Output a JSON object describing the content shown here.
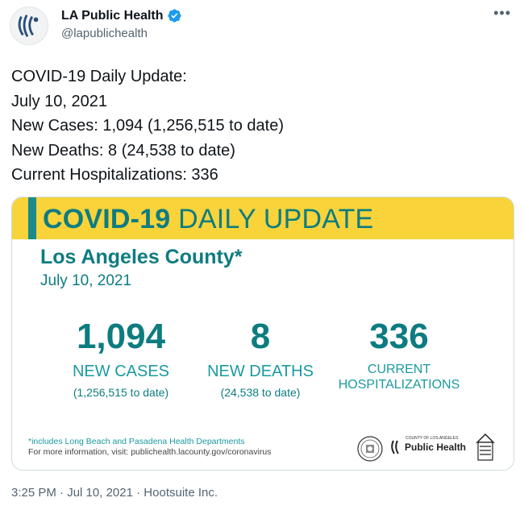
{
  "account": {
    "display_name": "LA Public Health",
    "handle": "@lapublichealth",
    "verified": true,
    "avatar_icon": "la-public-health-logo",
    "more_label": "•••"
  },
  "tweet": {
    "lines": [
      "COVID-19 Daily Update:",
      "July 10, 2021",
      "New Cases: 1,094 (1,256,515 to date)",
      "New Deaths: 8 (24,538 to date)",
      "Current Hospitalizations: 336"
    ]
  },
  "card": {
    "banner_title_bold": "COVID-19",
    "banner_title_light": "DAILY UPDATE",
    "region": "Los Angeles County*",
    "date": "July 10, 2021",
    "stats": {
      "cases": {
        "value": "1,094",
        "label": "NEW CASES",
        "sub": "(1,256,515 to date)"
      },
      "deaths": {
        "value": "8",
        "label": "NEW DEATHS",
        "sub": "(24,538 to date)"
      },
      "hosp": {
        "value": "336",
        "label_line1": "CURRENT",
        "label_line2": "HOSPITALIZATIONS"
      }
    },
    "footnote_1": "*includes Long Beach and Pasadena Health Departments",
    "footnote_2": "For more information, visit: publichealth.lacounty.gov/coronavirus",
    "logo_small": "COUNTY OF LOS ANGELES",
    "logo_text": "Public Health",
    "colors": {
      "banner": "#f8d33a",
      "teal": "#0d7c80"
    }
  },
  "meta": {
    "time": "3:25 PM",
    "separator": " · ",
    "date": "Jul 10, 2021",
    "source": "Hootsuite Inc."
  }
}
